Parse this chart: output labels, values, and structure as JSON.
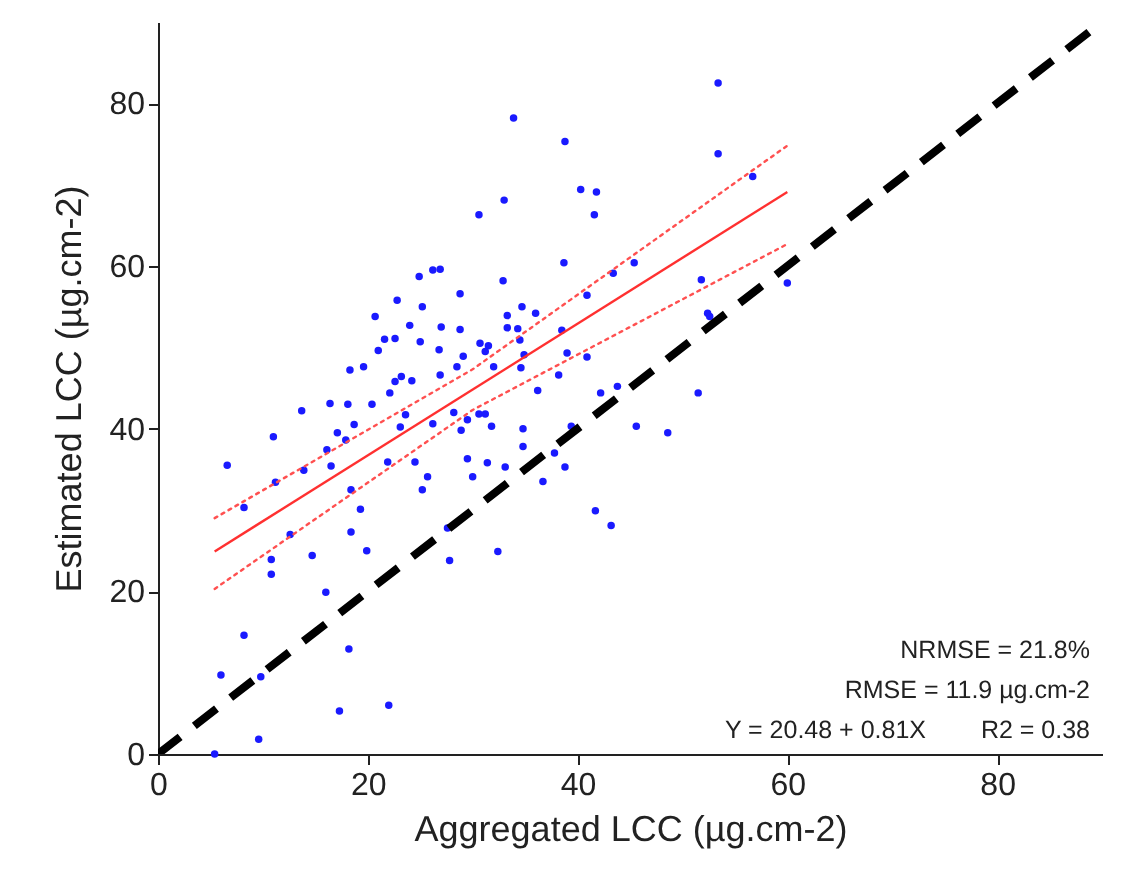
{
  "chart_data": {
    "type": "scatter",
    "xlabel": "Aggregated LCC (µg.cm-2)",
    "ylabel": "Estimated LCC (µg.cm-2)",
    "xlim": [
      0,
      90
    ],
    "ylim": [
      0,
      90
    ],
    "xticks": [
      0,
      20,
      40,
      60,
      80
    ],
    "yticks": [
      0,
      20,
      40,
      60,
      80
    ],
    "grid": false,
    "annotations": [
      "NRMSE = 21.8%",
      "RMSE = 11.9 µg.cm-2",
      "Y = 20.48 + 0.81X",
      "R2 = 0.38"
    ],
    "series": [
      {
        "type": "scatter",
        "marker": "circle",
        "color": "#1a1aff",
        "x": [
          33.9,
          38.8,
          33.0,
          30.6,
          40.3,
          41.8,
          41.6,
          38.7,
          43.4,
          26.9,
          26.2,
          24.9,
          28.8,
          32.9,
          22.8,
          25.2,
          20.7,
          33.3,
          36.0,
          34.7,
          40.9,
          24.0,
          27.0,
          28.8,
          33.3,
          34.3,
          38.5,
          21.6,
          22.6,
          25.0,
          30.7,
          34.5,
          21.0,
          26.8,
          31.5,
          31.2,
          29.1,
          34.9,
          39.0,
          40.9,
          18.3,
          19.6,
          28.5,
          32.0,
          34.6,
          23.2,
          26.9,
          22.6,
          24.2,
          38.2,
          22.1,
          36.2,
          42.2,
          43.8,
          6.6,
          13.7,
          16.4,
          18.1,
          20.4,
          11.0,
          17.1,
          18.7,
          17.9,
          16.1,
          16.5,
          13.9,
          11.2,
          8.2,
          18.4,
          19.3,
          18.4,
          12.6,
          14.7,
          19.9,
          10.8,
          10.8,
          16.0,
          8.2,
          18.2,
          6.0,
          9.8,
          17.3,
          22.0,
          9.6,
          5.4,
          23.1,
          23.6,
          21.9,
          24.5,
          25.7,
          25.2,
          26.2,
          28.9,
          29.5,
          31.8,
          30.6,
          31.2,
          28.2,
          29.5,
          30.0,
          31.4,
          33.1,
          34.8,
          34.8,
          36.7,
          37.8,
          38.8,
          39.4,
          32.4,
          27.8,
          27.6,
          41.7,
          43.2,
          51.5,
          45.6,
          48.6,
          53.4,
          53.4,
          56.7,
          45.4,
          51.8,
          60.0,
          52.4,
          52.6
        ],
        "values": [
          78.2,
          75.3,
          68.1,
          66.3,
          69.4,
          69.1,
          66.3,
          60.4,
          59.1,
          59.6,
          59.5,
          58.7,
          56.6,
          58.2,
          55.8,
          55.0,
          53.8,
          53.9,
          54.2,
          55.0,
          56.4,
          52.7,
          52.5,
          52.2,
          52.4,
          52.3,
          52.1,
          51.0,
          51.1,
          50.7,
          50.5,
          50.9,
          49.6,
          49.7,
          50.2,
          49.5,
          48.9,
          49.1,
          49.3,
          48.8,
          47.2,
          47.6,
          47.6,
          47.6,
          47.5,
          46.4,
          46.6,
          45.8,
          45.9,
          46.6,
          44.4,
          44.7,
          44.4,
          45.2,
          35.5,
          42.2,
          43.1,
          43.0,
          43.0,
          39.0,
          39.5,
          40.5,
          38.6,
          37.4,
          35.4,
          34.9,
          33.4,
          30.3,
          32.5,
          30.1,
          27.3,
          27.0,
          24.4,
          25.0,
          23.9,
          22.1,
          19.9,
          14.6,
          12.9,
          9.7,
          9.5,
          5.3,
          6.0,
          1.8,
          0,
          40.2,
          41.7,
          35.9,
          35.9,
          34.1,
          32.5,
          40.6,
          39.8,
          41.1,
          40.3,
          41.8,
          41.8,
          42.0,
          36.3,
          34.1,
          35.8,
          35.3,
          40.0,
          37.8,
          33.5,
          37.0,
          35.3,
          40.3,
          24.9,
          23.8,
          27.8,
          29.9,
          28.1,
          44.4,
          40.3,
          39.5,
          82.5,
          73.8,
          71.0,
          60.4,
          58.3,
          57.9,
          54.2,
          53.8
        ]
      },
      {
        "type": "line",
        "color": "#000000",
        "line_style": "dashed",
        "marker": "none",
        "x": [
          0,
          90
        ],
        "values": [
          0,
          90
        ]
      },
      {
        "type": "line",
        "color": "#ff3030",
        "line_style": "solid",
        "marker": "none",
        "x": [
          5.4,
          60
        ],
        "values": [
          24.9,
          69.1
        ]
      },
      {
        "type": "line",
        "color": "#ff5050",
        "line_style": "dotted",
        "marker": "none",
        "x": [
          5.4,
          30,
          60
        ],
        "values": [
          29.0,
          47.3,
          74.8
        ]
      },
      {
        "type": "line",
        "color": "#ff5050",
        "line_style": "dotted",
        "marker": "none",
        "x": [
          5.4,
          30,
          60
        ],
        "values": [
          20.3,
          42.3,
          62.7
        ]
      }
    ]
  }
}
